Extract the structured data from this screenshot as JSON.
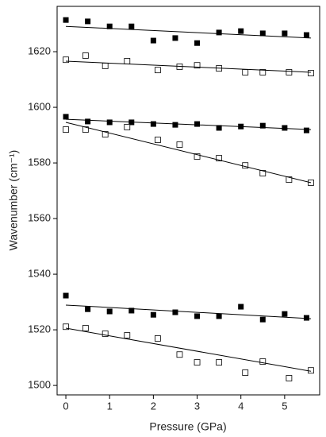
{
  "chart_data": {
    "type": "scatter",
    "x_label": "Pressure (GPa)",
    "y_label": "Wavenumber (cm⁻¹)",
    "xlim": [
      -0.2,
      5.8
    ],
    "ylim": [
      1496.6,
      1636.3
    ],
    "xticks": [
      0,
      1,
      2,
      3,
      4,
      5
    ],
    "yticks": [
      1500,
      1520,
      1540,
      1560,
      1580,
      1600,
      1620
    ],
    "color": "#000000",
    "series": [
      {
        "marker": "filled",
        "x": [
          0,
          0.5,
          1,
          1.5,
          2,
          2.5,
          3,
          3.5,
          4,
          4.5,
          5,
          5.5
        ],
        "values": [
          1631.4,
          1630.9,
          1629.1,
          1629.1,
          1624.0,
          1624.9,
          1623.1,
          1626.9,
          1627.4,
          1626.6,
          1626.6,
          1626.0
        ]
      },
      {
        "marker": "open",
        "x": [
          0,
          0.45,
          0.9,
          1.4,
          2.1,
          2.6,
          3,
          3.5,
          4.1,
          4.5,
          5.1,
          5.6
        ],
        "values": [
          1617.1,
          1618.6,
          1614.9,
          1616.6,
          1613.4,
          1614.6,
          1615.1,
          1614.0,
          1612.6,
          1612.6,
          1612.6,
          1612.3
        ]
      },
      {
        "marker": "filled",
        "x": [
          0,
          0.5,
          1,
          1.5,
          2,
          2.5,
          3,
          3.5,
          4,
          4.5,
          5,
          5.5
        ],
        "values": [
          1596.6,
          1594.9,
          1594.6,
          1594.6,
          1594.0,
          1593.7,
          1594.0,
          1592.6,
          1593.1,
          1593.4,
          1592.6,
          1591.7
        ]
      },
      {
        "marker": "open",
        "x": [
          0,
          0.45,
          0.9,
          1.4,
          2.1,
          2.6,
          3,
          3.5,
          4.1,
          4.5,
          5.1,
          5.6
        ],
        "values": [
          1592.0,
          1592.0,
          1590.3,
          1592.9,
          1588.3,
          1586.6,
          1582.3,
          1581.7,
          1579.1,
          1576.3,
          1574.0,
          1572.9
        ]
      },
      {
        "marker": "filled",
        "x": [
          0,
          0.5,
          1,
          1.5,
          2,
          2.5,
          3,
          3.5,
          4,
          4.5,
          5,
          5.5
        ],
        "values": [
          1532.3,
          1527.4,
          1526.6,
          1526.9,
          1525.4,
          1526.3,
          1524.9,
          1524.9,
          1528.3,
          1523.7,
          1525.7,
          1524.3
        ]
      },
      {
        "marker": "open",
        "x": [
          0,
          0.45,
          0.9,
          1.4,
          2.1,
          2.6,
          3,
          3.5,
          4.1,
          4.5,
          5.1,
          5.6
        ],
        "values": [
          1521.1,
          1520.6,
          1518.6,
          1518.0,
          1516.9,
          1511.1,
          1508.3,
          1508.3,
          1504.6,
          1508.6,
          1502.6,
          1505.4
        ]
      },
      {
        "marker": "line",
        "x": [
          0,
          5.6
        ],
        "values": [
          1629.1,
          1624.9
        ]
      },
      {
        "marker": "line",
        "x": [
          0,
          5.6
        ],
        "values": [
          1616.6,
          1612.6
        ]
      },
      {
        "marker": "line",
        "x": [
          0,
          5.6
        ],
        "values": [
          1595.7,
          1592.0
        ]
      },
      {
        "marker": "line",
        "x": [
          0,
          5.6
        ],
        "values": [
          1594.6,
          1572.9
        ]
      },
      {
        "marker": "line",
        "x": [
          0,
          5.6
        ],
        "values": [
          1528.9,
          1524.0
        ]
      },
      {
        "marker": "line",
        "x": [
          0,
          5.6
        ],
        "values": [
          1520.6,
          1505.1
        ]
      }
    ]
  }
}
